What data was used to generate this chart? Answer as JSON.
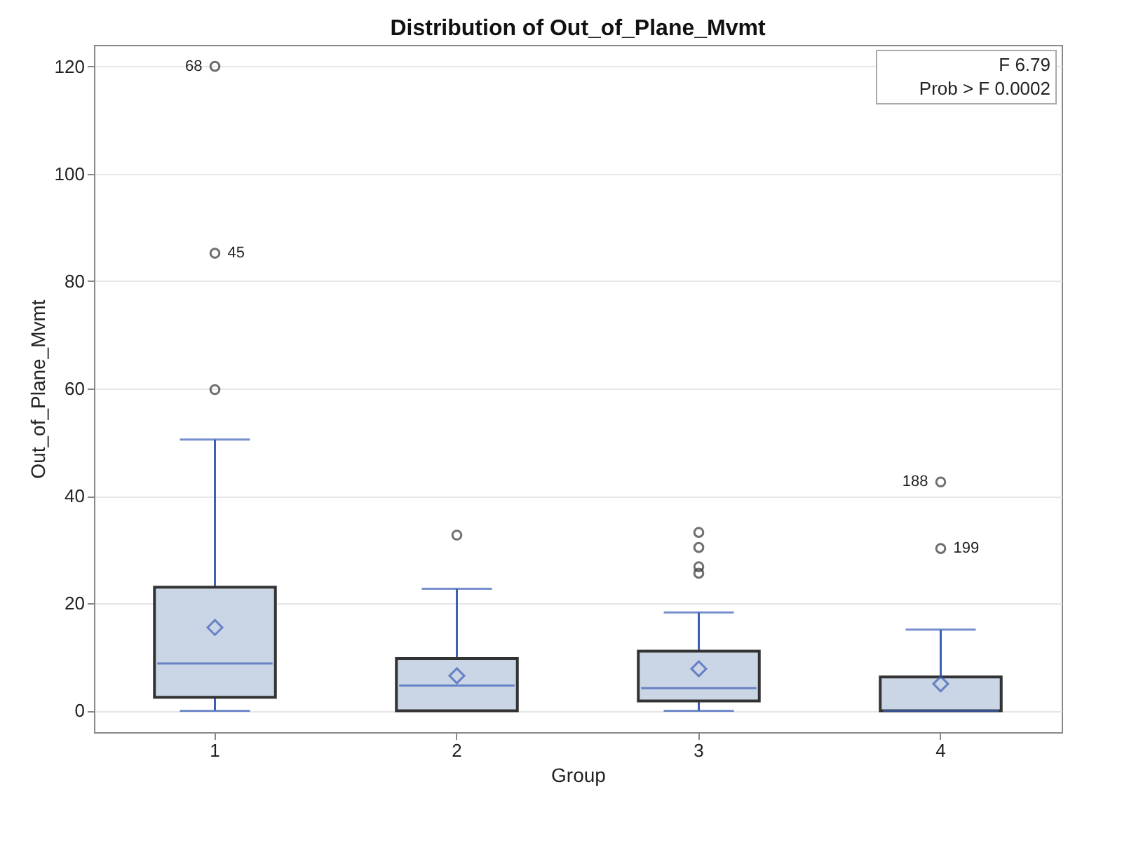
{
  "chart_data": {
    "type": "box",
    "title": "Distribution of Out_of_Plane_Mvmt",
    "xlabel": "Group",
    "ylabel": "Out_of_Plane_Mvmt",
    "categories": [
      "1",
      "2",
      "3",
      "4"
    ],
    "series": [
      {
        "color": "#cad5e5",
        "boxes": [
          {
            "low": 0,
            "q1": 2.5,
            "median": 8.8,
            "q3": 23,
            "high": 50.5,
            "mean": 15.5
          },
          {
            "low": 0,
            "q1": 0,
            "median": 4.7,
            "q3": 9.7,
            "high": 22.7,
            "mean": 6.5
          },
          {
            "low": 0,
            "q1": 1.8,
            "median": 4.2,
            "q3": 11.1,
            "high": 18.3,
            "mean": 7.8
          },
          {
            "low": 0,
            "q1": 0,
            "median": 0,
            "q3": 6.3,
            "high": 15.1,
            "mean": 5.0
          }
        ]
      },
      {
        "type": "scatter",
        "color": "#333333",
        "marker": "circle",
        "x": [
          "1",
          "1",
          "1",
          "2",
          "3",
          "3",
          "3",
          "3",
          "4",
          "4"
        ],
        "values": [
          59.8,
          85.2,
          120,
          32.7,
          25.6,
          26.8,
          30.4,
          33.2,
          30.2,
          42.6
        ]
      }
    ],
    "ylim": [
      -4,
      124
    ],
    "yticks": [
      0,
      20,
      40,
      60,
      80,
      100,
      120
    ],
    "grid": "y",
    "marker": "diamond",
    "annotations": [
      {
        "text": "68",
        "x": "1",
        "y": 120
      },
      {
        "text": "45",
        "x": "1",
        "y": 85.2
      },
      {
        "text": "188",
        "x": "4",
        "y": 42.6
      },
      {
        "text": "199",
        "x": "4",
        "y": 30.2
      },
      "F 6.79",
      "Prob > F 0.0002"
    ]
  }
}
